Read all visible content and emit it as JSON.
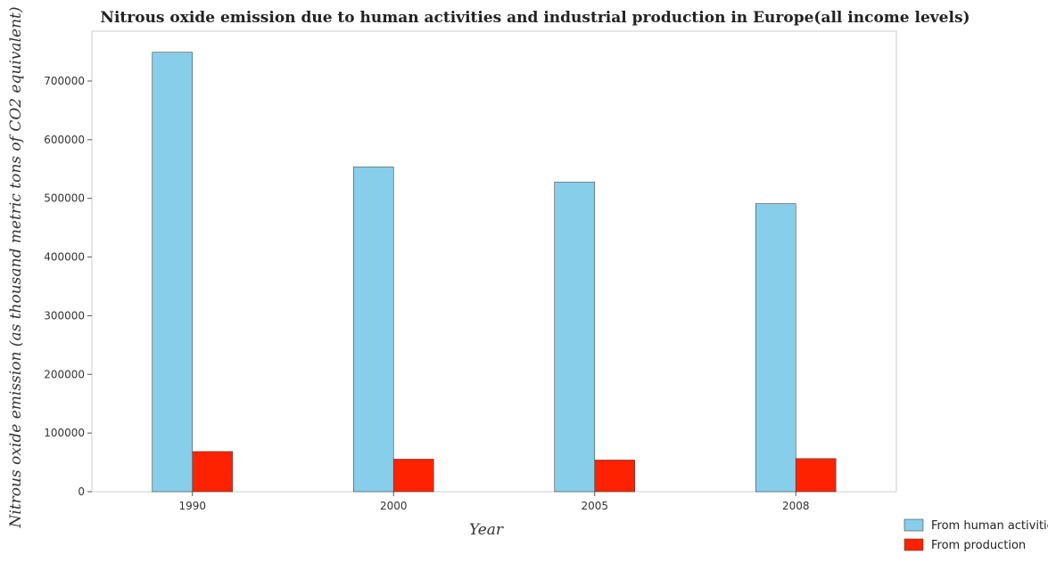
{
  "chart_data": {
    "type": "bar",
    "title": "Nitrous oxide emission due to human activities and industrial production in Europe(all income levels)",
    "xlabel": "Year",
    "ylabel": "Nitrous oxide emission (as thousand metric tons of CO2 equivalent)",
    "categories": [
      "1990",
      "2000",
      "2005",
      "2008"
    ],
    "series": [
      {
        "name": "From human activities",
        "color": "#87ceeb",
        "values": [
          749000,
          553500,
          527700,
          491000
        ]
      },
      {
        "name": "From production",
        "color": "#ff2200",
        "values": [
          68500,
          55500,
          54000,
          56500
        ]
      }
    ],
    "ylim": [
      0,
      785000
    ],
    "yticks": [
      0,
      100000,
      200000,
      300000,
      400000,
      500000,
      600000,
      700000
    ],
    "ytick_labels": [
      "0",
      "100000",
      "200000",
      "300000",
      "400000",
      "500000",
      "600000",
      "700000"
    ],
    "legend_position": "bottom-right",
    "grid": false
  }
}
